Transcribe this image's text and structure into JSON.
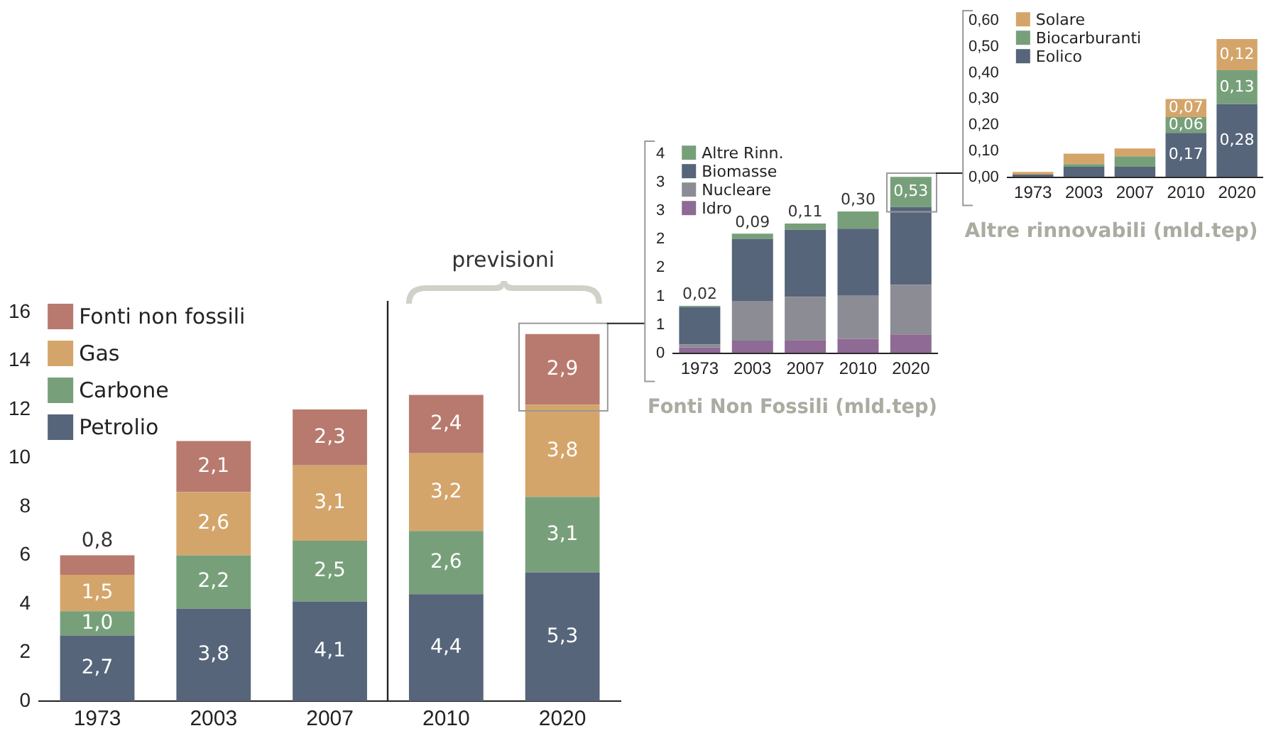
{
  "chart_data": [
    {
      "type": "bar",
      "stacked": true,
      "categories": [
        "1973",
        "2003",
        "2007",
        "2010",
        "2020"
      ],
      "legend": "top left",
      "grid": false,
      "ylim": [
        0,
        16
      ],
      "yticks": [
        0,
        2,
        4,
        6,
        8,
        10,
        12,
        14,
        16
      ],
      "annotations": [
        "previsioni"
      ],
      "series": [
        {
          "name": "Petrolio",
          "color": "#56657a",
          "values": [
            2.7,
            3.8,
            4.1,
            4.4,
            5.3
          ],
          "value_labels": [
            "2,7",
            "3,8",
            "4,1",
            "4,4",
            "5,3"
          ]
        },
        {
          "name": "Carbone",
          "color": "#77a07a",
          "values": [
            1.0,
            2.2,
            2.5,
            2.6,
            3.1
          ],
          "value_labels": [
            "1,0",
            "2,2",
            "2,5",
            "2,6",
            "3,1"
          ]
        },
        {
          "name": "Gas",
          "color": "#d4a56a",
          "values": [
            1.5,
            2.6,
            3.1,
            3.2,
            3.8
          ],
          "value_labels": [
            "1,5",
            "2,6",
            "3,1",
            "3,2",
            "3,8"
          ]
        },
        {
          "name": "Fonti non fossili",
          "color": "#b87a6e",
          "values": [
            0.8,
            2.1,
            2.3,
            2.4,
            2.9
          ],
          "value_labels": [
            "0,8",
            "2,1",
            "2,3",
            "2,4",
            "2,9"
          ]
        }
      ]
    },
    {
      "type": "bar",
      "stacked": true,
      "title": "Fonti Non Fossili (mld.tep)",
      "categories": [
        "1973",
        "2003",
        "2007",
        "2010",
        "2020"
      ],
      "legend": "top left",
      "grid": false,
      "ylim": [
        0,
        3.5
      ],
      "yticks": [
        0,
        {
          "value": 0.5,
          "label": "1"
        },
        1,
        {
          "value": 1.5,
          "label": "2"
        },
        2,
        {
          "value": 2.5,
          "label": "3"
        },
        3,
        {
          "value": 3.5,
          "label": "4"
        }
      ],
      "series": [
        {
          "name": "Idro",
          "color": "#8e6a94",
          "values": [
            0.1,
            0.22,
            0.23,
            0.25,
            0.33
          ]
        },
        {
          "name": "Nucleare",
          "color": "#8c8c94",
          "values": [
            0.05,
            0.69,
            0.76,
            0.76,
            0.87
          ]
        },
        {
          "name": "Biomasse",
          "color": "#56657a",
          "values": [
            0.66,
            1.1,
            1.18,
            1.18,
            1.37
          ]
        },
        {
          "name": "Altre Rinn.",
          "color": "#77a07a",
          "values": [
            0.02,
            0.09,
            0.11,
            0.3,
            0.53
          ],
          "value_labels": [
            "0,02",
            "0,09",
            "0,11",
            "0,30",
            "0,53"
          ]
        }
      ]
    },
    {
      "type": "bar",
      "stacked": true,
      "title": "Altre rinnovabili (mld.tep)",
      "categories": [
        "1973",
        "2003",
        "2007",
        "2010",
        "2020"
      ],
      "legend": "top left",
      "grid": false,
      "ylim": [
        0,
        0.6
      ],
      "yticks": [
        {
          "value": 0,
          "label": "0,00"
        },
        {
          "value": 0.1,
          "label": "0,10"
        },
        {
          "value": 0.2,
          "label": "0,20"
        },
        {
          "value": 0.3,
          "label": "0,30"
        },
        {
          "value": 0.4,
          "label": "0,40"
        },
        {
          "value": 0.5,
          "label": "0,50"
        },
        {
          "value": 0.6,
          "label": "0,60"
        }
      ],
      "series": [
        {
          "name": "Eolico",
          "color": "#56657a",
          "values": [
            0.01,
            0.04,
            0.04,
            0.17,
            0.28
          ],
          "value_labels": [
            null,
            null,
            null,
            "0,17",
            "0,28"
          ]
        },
        {
          "name": "Biocarburanti",
          "color": "#77a07a",
          "values": [
            0,
            0.01,
            0.04,
            0.06,
            0.13
          ],
          "value_labels": [
            null,
            null,
            null,
            "0,06",
            "0,13"
          ]
        },
        {
          "name": "Solare",
          "color": "#d4a56a",
          "values": [
            0.01,
            0.04,
            0.03,
            0.07,
            0.12
          ],
          "value_labels": [
            null,
            null,
            null,
            "0,07",
            "0,12"
          ]
        }
      ]
    }
  ]
}
